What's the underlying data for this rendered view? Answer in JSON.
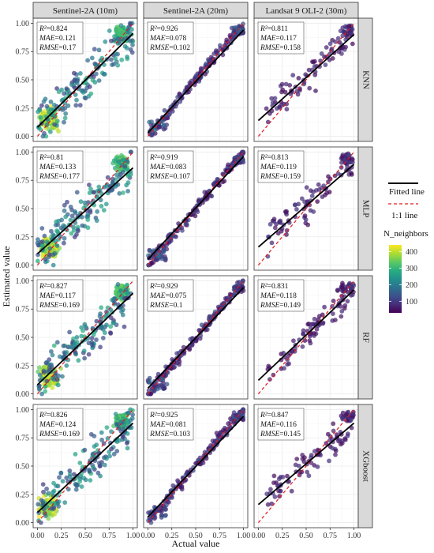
{
  "chart_data": {
    "type": "scatter",
    "layout": "facet-grid 4x3",
    "xlabel": "Actual value",
    "ylabel": "Estimated value",
    "xlim": [
      0,
      1
    ],
    "ylim": [
      0,
      1
    ],
    "x_ticks": [
      "0.00",
      "0.25",
      "0.50",
      "0.75",
      "1.00"
    ],
    "y_ticks": [
      "0.00",
      "0.25",
      "0.50",
      "0.75",
      "1.00"
    ],
    "grid": true,
    "columns": [
      "Sentinel-2A (10m)",
      "Sentinel-2A (20m)",
      "Landsat 9 OLI-2 (30m)"
    ],
    "rows": [
      "KNN",
      "MLP",
      "RF",
      "XGboost"
    ],
    "legend": {
      "placement": "right",
      "fitted_line_label": "Fitted line",
      "one_to_one_label": "1:1 line",
      "colorbar_title": "N_neighbors",
      "colorbar_ticks": [
        "400",
        "300",
        "200",
        "100"
      ],
      "colorbar_values": [
        400,
        300,
        200,
        100
      ],
      "colorbar_range": [
        30,
        440
      ]
    },
    "colors": {
      "fitted_line": "#000000",
      "one_to_one": "#e31a1c",
      "panel_bg": "#ffffff",
      "grid": "#ebebeb",
      "strip_bg": "#d9d9d9",
      "viridis": [
        "#440154",
        "#472d7b",
        "#3b528b",
        "#2c728e",
        "#21918c",
        "#28ae80",
        "#5ec962",
        "#addc30",
        "#fde725"
      ]
    },
    "panels": [
      {
        "row": "KNN",
        "column": "Sentinel-2A (10m)",
        "r2": "R²=0.824",
        "mae": "MAE=0.121",
        "rmse": "RMSE=0.17",
        "fit": {
          "intercept": 0.08,
          "slope": 0.83
        }
      },
      {
        "row": "KNN",
        "column": "Sentinel-2A (20m)",
        "r2": "R²=0.926",
        "mae": "MAE=0.078",
        "rmse": "RMSE=0.102",
        "fit": {
          "intercept": 0.03,
          "slope": 0.91
        }
      },
      {
        "row": "KNN",
        "column": "Landsat 9 OLI-2 (30m)",
        "r2": "R²=0.811",
        "mae": "MAE=0.117",
        "rmse": "RMSE=0.158",
        "fit": {
          "intercept": 0.14,
          "slope": 0.76
        }
      },
      {
        "row": "MLP",
        "column": "Sentinel-2A (10m)",
        "r2": "R²=0.81",
        "mae": "MAE=0.133",
        "rmse": "RMSE=0.177",
        "fit": {
          "intercept": 0.1,
          "slope": 0.76
        }
      },
      {
        "row": "MLP",
        "column": "Sentinel-2A (20m)",
        "r2": "R²=0.919",
        "mae": "MAE=0.083",
        "rmse": "RMSE=0.107",
        "fit": {
          "intercept": 0.05,
          "slope": 0.91
        }
      },
      {
        "row": "MLP",
        "column": "Landsat 9 OLI-2 (30m)",
        "r2": "R²=0.813",
        "mae": "MAE=0.119",
        "rmse": "RMSE=0.159",
        "fit": {
          "intercept": 0.16,
          "slope": 0.73
        }
      },
      {
        "row": "RF",
        "column": "Sentinel-2A (10m)",
        "r2": "R²=0.827",
        "mae": "MAE=0.117",
        "rmse": "RMSE=0.169",
        "fit": {
          "intercept": 0.08,
          "slope": 0.81
        }
      },
      {
        "row": "RF",
        "column": "Sentinel-2A (20m)",
        "r2": "R²=0.929",
        "mae": "MAE=0.075",
        "rmse": "RMSE=0.1",
        "fit": {
          "intercept": 0.05,
          "slope": 0.89
        }
      },
      {
        "row": "RF",
        "column": "Landsat 9 OLI-2 (30m)",
        "r2": "R²=0.831",
        "mae": "MAE=0.118",
        "rmse": "RMSE=0.149",
        "fit": {
          "intercept": 0.12,
          "slope": 0.8
        }
      },
      {
        "row": "XGboost",
        "column": "Sentinel-2A (10m)",
        "r2": "R²=0.826",
        "mae": "MAE=0.124",
        "rmse": "RMSE=0.169",
        "fit": {
          "intercept": 0.09,
          "slope": 0.79
        }
      },
      {
        "row": "XGboost",
        "column": "Sentinel-2A (20m)",
        "r2": "R²=0.925",
        "mae": "MAE=0.081",
        "rmse": "RMSE=0.103",
        "fit": {
          "intercept": 0.05,
          "slope": 0.89
        }
      },
      {
        "row": "XGboost",
        "column": "Landsat 9 OLI-2 (30m)",
        "r2": "R²=0.847",
        "mae": "MAE=0.116",
        "rmse": "RMSE=0.145",
        "fit": {
          "intercept": 0.16,
          "slope": 0.72
        }
      }
    ],
    "clusters": [
      {
        "column": "Sentinel-2A (10m)",
        "x": 0.12,
        "y": 0.16,
        "spread": 0.09,
        "n_neighbors": 390
      },
      {
        "column": "Sentinel-2A (10m)",
        "x": 0.88,
        "y": 0.9,
        "spread": 0.07,
        "n_neighbors": 320
      },
      {
        "column": "Sentinel-2A (10m)",
        "x": 0.5,
        "y": 0.5,
        "spread": 0.3,
        "n_neighbors": 160
      },
      {
        "column": "Sentinel-2A (20m)",
        "x": 0.5,
        "y": 0.5,
        "spread": 0.3,
        "n_neighbors": 70
      },
      {
        "column": "Landsat 9 OLI-2 (30m)",
        "x": 0.55,
        "y": 0.55,
        "spread": 0.3,
        "n_neighbors": 50
      }
    ]
  }
}
